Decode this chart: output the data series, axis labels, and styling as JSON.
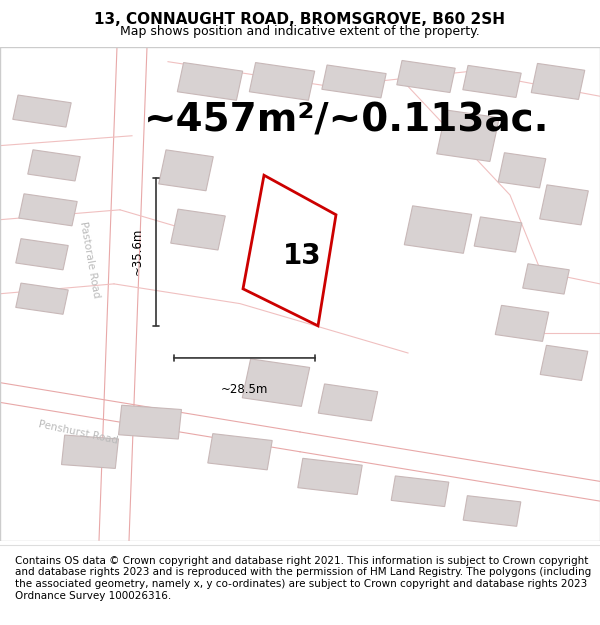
{
  "title": "13, CONNAUGHT ROAD, BROMSGROVE, B60 2SH",
  "subtitle": "Map shows position and indicative extent of the property.",
  "area_text": "~457m²/~0.113ac.",
  "label_number": "13",
  "dim_width": "~28.5m",
  "dim_height": "~35.6m",
  "footer": "Contains OS data © Crown copyright and database right 2021. This information is subject to Crown copyright and database rights 2023 and is reproduced with the permission of HM Land Registry. The polygons (including the associated geometry, namely x, y co-ordinates) are subject to Crown copyright and database rights 2023 Ordnance Survey 100026316.",
  "bg_color": "#f2eeee",
  "property_edge_color": "#cc0000",
  "dim_color": "#333333",
  "title_fontsize": 11,
  "subtitle_fontsize": 9,
  "area_fontsize": 28,
  "label_fontsize": 20,
  "footer_fontsize": 7.5
}
